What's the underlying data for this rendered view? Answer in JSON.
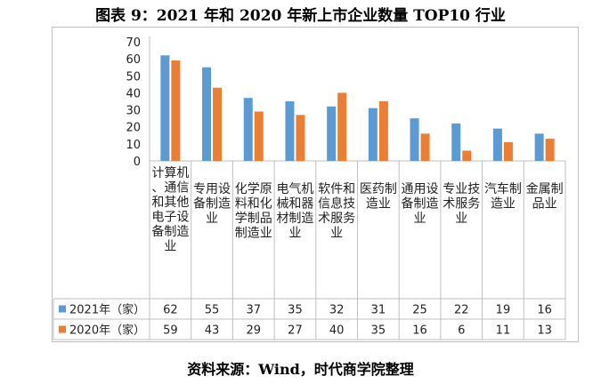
{
  "chart_data": {
    "type": "bar",
    "title": "图表 9：2021 年和 2020 年新上市企业数量 TOP10 行业",
    "categories": [
      "计算机、通信和其他电子设备制造业",
      "专用设备制造业",
      "化学原料和化学制品制造业",
      "电气机械和器材制造业",
      "软件和信息技术服务业",
      "医药制造业",
      "通用设备制造业",
      "专业技术服务业",
      "汽车制造业",
      "金属制品业"
    ],
    "series": [
      {
        "name": "2021年（家）",
        "color": "#5b9bd5",
        "values": [
          62,
          55,
          37,
          35,
          32,
          31,
          25,
          22,
          19,
          16
        ]
      },
      {
        "name": "2020年（家）",
        "color": "#ed7d31",
        "values": [
          59,
          43,
          29,
          27,
          40,
          35,
          16,
          6,
          11,
          13
        ]
      }
    ],
    "yticks": [
      "0",
      "10",
      "20",
      "30",
      "40",
      "50",
      "60",
      "70"
    ],
    "ylim": [
      0,
      70
    ],
    "xlabel": "",
    "ylabel": "",
    "grid": false,
    "legend": "data-table"
  },
  "source": "资料来源：Wind，时代商学院整理"
}
